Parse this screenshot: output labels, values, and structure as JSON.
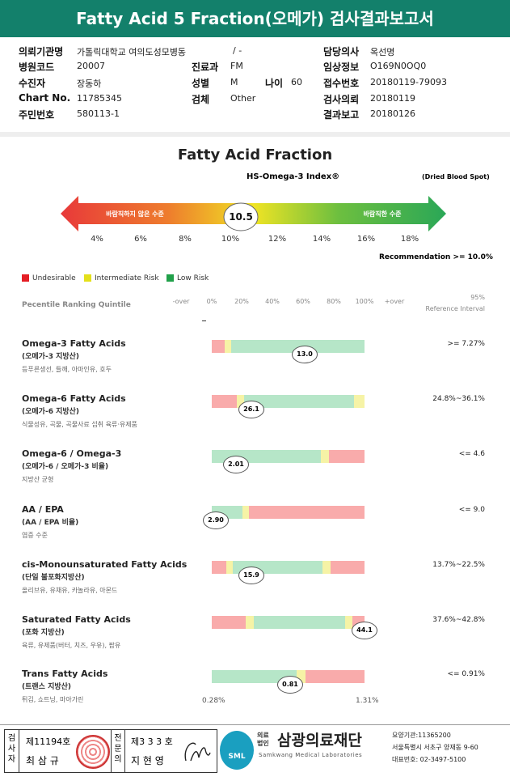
{
  "header": {
    "title": "Fatty Acid 5 Fraction(오메가) 검사결과보고서"
  },
  "info": {
    "institution": {
      "label": "의뢰기관명",
      "value": "가톨릭대학교 여의도성모병동"
    },
    "ward": "/ -",
    "doctor": {
      "label": "담당의사",
      "value": "옥선명"
    },
    "hospital_code": {
      "label": "병원코드",
      "value": "20007"
    },
    "department": {
      "label": "진료과",
      "value": "FM"
    },
    "clinical_info": {
      "label": "임상정보",
      "value": "O169N0OQ0"
    },
    "patient": {
      "label": "수진자",
      "value": "장동하"
    },
    "sex": {
      "label": "성별",
      "value": "M"
    },
    "age": {
      "label": "나이",
      "value": "60"
    },
    "receipt_no": {
      "label": "접수번호",
      "value": "20180119-79093"
    },
    "chart_no": {
      "label": "Chart No.",
      "value": "11785345"
    },
    "specimen": {
      "label": "검체",
      "value": "Other"
    },
    "request_date": {
      "label": "검사의뢰",
      "value": "20180119"
    },
    "resident_no": {
      "label": "주민번호",
      "value": "580113-1"
    },
    "report_date": {
      "label": "결과보고",
      "value": "20180126"
    }
  },
  "index": {
    "title": "Fatty Acid Fraction",
    "subtitle": "HS-Omega-3 Index®",
    "note": "(Dried Blood Spot)",
    "left_label": "바람직하지 않은 수준",
    "right_label": "바람직한 수준",
    "value": "10.5",
    "scale": [
      "4%",
      "6%",
      "8%",
      "10%",
      "12%",
      "14%",
      "16%",
      "18%"
    ],
    "recommendation": "Recommendation  >= 10.0%"
  },
  "legend": [
    "Undesirable",
    "Intermediate Risk",
    "Low Risk"
  ],
  "table_header": {
    "left": "Pecentile Ranking Quintile",
    "ticks": [
      "-over",
      "0%",
      "20%",
      "40%",
      "60%",
      "80%",
      "100%",
      "+over"
    ],
    "right_top": "95%",
    "right_bottom": "Reference Interval"
  },
  "rows": [
    {
      "name": "Omega-3 Fatty Acids",
      "korean": "(오메가-3 지방산)",
      "foods": "등푸른생선, 들깨, 아마인유, 호두",
      "value": "13.0",
      "reference": ">= 7.27%"
    },
    {
      "name": "Omega-6 Fatty Acids",
      "korean": "(오메가-6 지방산)",
      "foods": "식물성유, 곡물, 곡물사료 섭취 육류·유제품",
      "value": "26.1",
      "reference": "24.8%~36.1%"
    },
    {
      "name": "Omega-6 / Omega-3",
      "korean": "(오메가-6 / 오메가-3 비율)",
      "foods": "지방산 균형",
      "value": "2.01",
      "reference": "<= 4.6"
    },
    {
      "name": "AA / EPA",
      "korean": "(AA / EPA 비율)",
      "foods": "염증 수준",
      "value": "2.90",
      "reference": "<= 9.0"
    },
    {
      "name": "cis-Monounsaturated Fatty Acids",
      "korean": "(단일 불포화지방산)",
      "foods": "올리브유, 유채유, 카놀라유, 아몬드",
      "value": "15.9",
      "reference": "13.7%~22.5%"
    },
    {
      "name": "Saturated Fatty Acids",
      "korean": "(포화 지방산)",
      "foods": "육류, 유제품(버터, 치즈, 우유), 팜유",
      "value": "44.1",
      "reference": "37.6%~42.8%"
    },
    {
      "name": "Trans Fatty Acids",
      "korean": "(트랜스 지방산)",
      "foods": "튀김, 쇼트닝, 마아가린",
      "value": "0.81",
      "reference": "<= 0.91%"
    }
  ],
  "trans_scale": [
    "0.28%",
    "1.31%"
  ],
  "footer": {
    "tester_title": "검사자",
    "tester_no": "제11194호",
    "tester_name": "최 삼 규",
    "specialist_title": "전문의",
    "specialist_no": "제3 3 3 호",
    "specialist_name": "지 현 영",
    "logo": "SML",
    "corp": "의료법인",
    "org": "삼광의료재단",
    "org_en": "Samkwang Medical Laboratories",
    "code": "요양기관:11365200",
    "address": "서울특별시 서초구 양재동 9-60",
    "phone": "대표번호: 02-3497-5100"
  }
}
